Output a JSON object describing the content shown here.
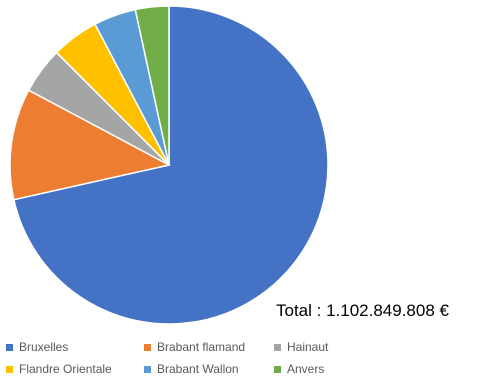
{
  "chart_data": {
    "type": "pie",
    "title": "",
    "annotation": "Total : 1.102.849.808 €",
    "categories": [
      "Bruxelles",
      "Brabant flamand",
      "Hainaut",
      "Flandre Orientale",
      "Brabant Wallon",
      "Anvers"
    ],
    "values": [
      71.5,
      11.3,
      4.7,
      4.8,
      4.3,
      3.4
    ],
    "unit": "%",
    "colors": [
      "#4472C4",
      "#ED7D31",
      "#A5A5A5",
      "#FFC000",
      "#5B9BD5",
      "#70AD47"
    ],
    "legend": {
      "position": "bottom",
      "items": [
        {
          "label": "Bruxelles",
          "color": "#4472C4"
        },
        {
          "label": "Brabant flamand",
          "color": "#ED7D31"
        },
        {
          "label": "Hainaut",
          "color": "#A5A5A5"
        },
        {
          "label": "Flandre Orientale",
          "color": "#FFC000"
        },
        {
          "label": "Brabant Wallon",
          "color": "#5B9BD5"
        },
        {
          "label": "Anvers",
          "color": "#70AD47"
        }
      ]
    }
  }
}
